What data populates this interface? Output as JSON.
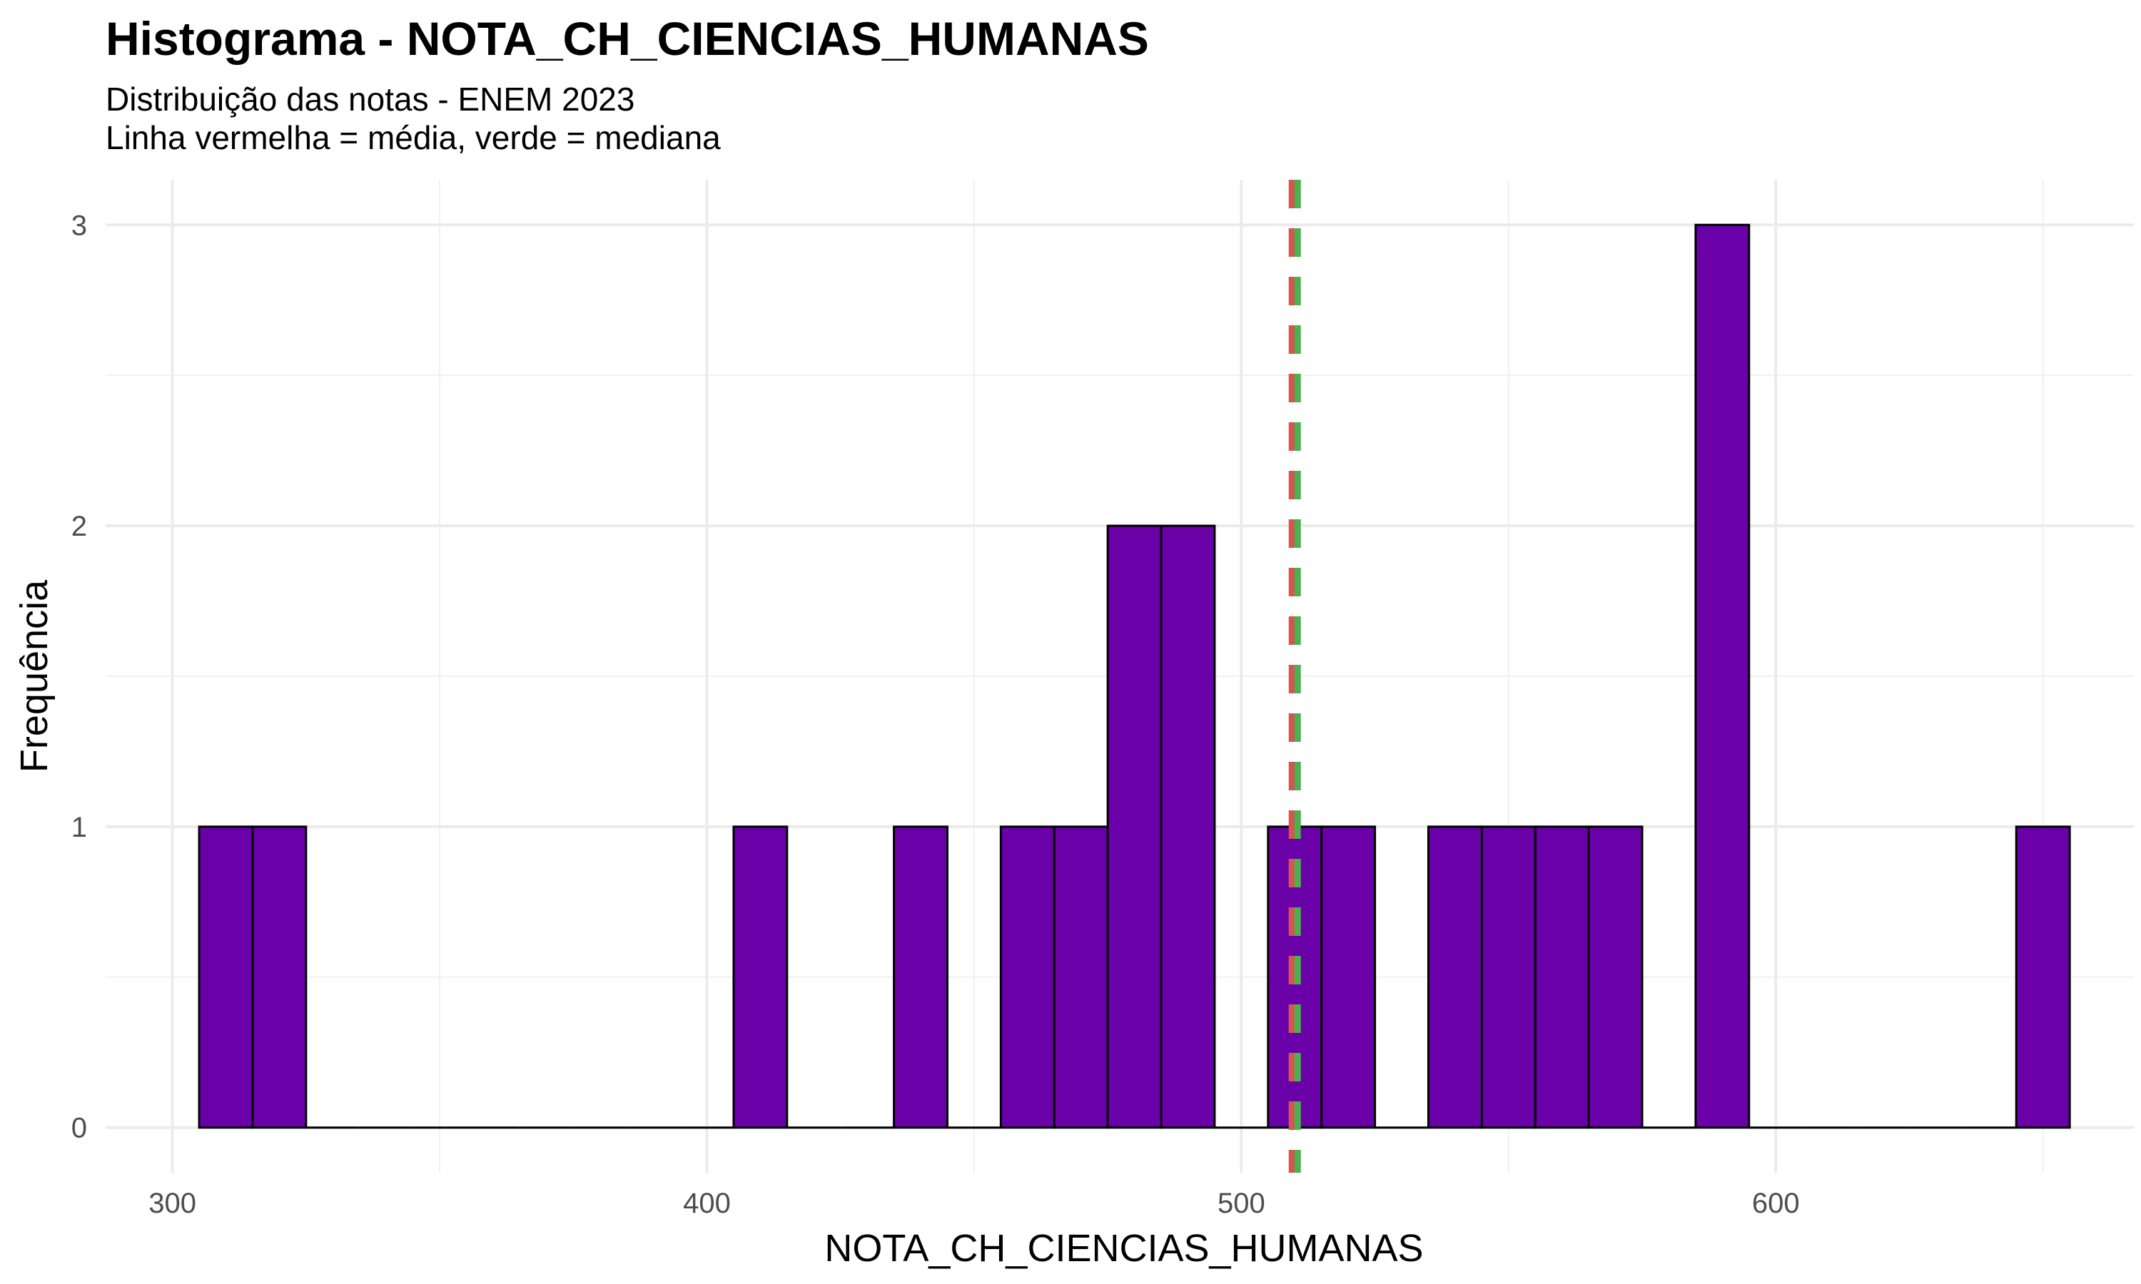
{
  "chart_data": {
    "type": "bar",
    "title": "Histograma - NOTA_CH_CIENCIAS_HUMANAS",
    "subtitle_lines": [
      "Distribuição das notas - ENEM 2023",
      "Linha vermelha = média, verde = mediana"
    ],
    "xlabel": "NOTA_CH_CIENCIAS_HUMANAS",
    "ylabel": "Frequência",
    "xlim": [
      287.5,
      667
    ],
    "ylim": [
      -0.15,
      3.15
    ],
    "x_ticks": [
      300,
      400,
      500,
      600
    ],
    "y_ticks": [
      0,
      1,
      2,
      3
    ],
    "grid": true,
    "bin_width": 10,
    "bins_start": 305,
    "counts": [
      1,
      1,
      0,
      0,
      0,
      0,
      0,
      0,
      0,
      0,
      1,
      0,
      0,
      1,
      0,
      1,
      1,
      2,
      2,
      0,
      1,
      1,
      0,
      1,
      1,
      1,
      1,
      0,
      3,
      0,
      0,
      0,
      0,
      0,
      1
    ],
    "bar_color": "#6a00a8",
    "bar_outline": "#000000",
    "mean": 510,
    "median": 510,
    "mean_color": "#d9534f",
    "median_color": "#4caf50"
  }
}
